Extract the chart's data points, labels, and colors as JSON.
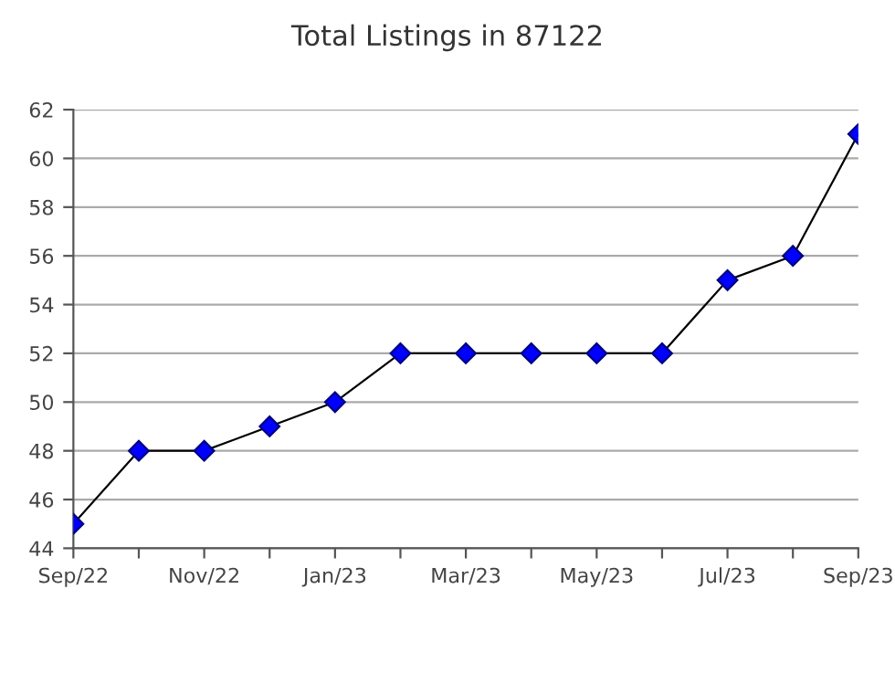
{
  "chart_data": {
    "type": "line",
    "title": "Total Listings in 87122",
    "categories": [
      "Sep/22",
      null,
      "Nov/22",
      null,
      "Jan/23",
      null,
      "Mar/23",
      null,
      "May/23",
      null,
      "Jul/23",
      null,
      "Sep/23"
    ],
    "series": [
      {
        "color": "#0000ff",
        "values": [
          45,
          48,
          48,
          49,
          50,
          52,
          52,
          52,
          52,
          52,
          55,
          56,
          61
        ]
      }
    ],
    "ylim": [
      44,
      62
    ],
    "yticks": [
      44,
      46,
      48,
      50,
      52,
      54,
      56,
      58,
      60,
      62
    ],
    "grid": "y",
    "marker": "diamond",
    "line_style": "solid"
  }
}
